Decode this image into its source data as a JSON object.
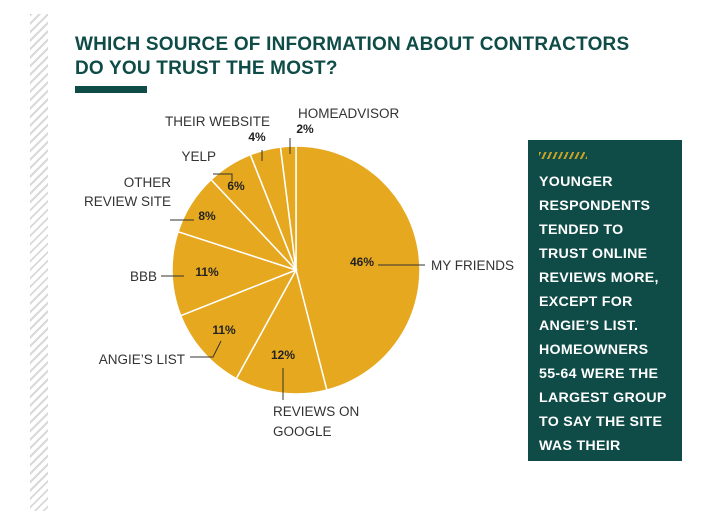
{
  "title_line1": "WHICH SOURCE OF INFORMATION ABOUT CONTRACTORS",
  "title_line2": "DO YOU TRUST THE MOST?",
  "callout": {
    "text": "YOUNGER RESPONDENTS TENDED TO TRUST ONLINE REVIEWS MORE, EXCEPT FOR ANGIE’S LIST. HOMEOWNERS 55-64 WERE THE LARGEST GROUP TO SAY THE SITE WAS THEIR “MOST TRUSTED”"
  },
  "colors": {
    "primary": "#0f4c47",
    "slice": "#e6a81e",
    "slice_edge": "#ffffff",
    "accent_stripes": "#c8a226"
  },
  "chart_data": {
    "type": "pie",
    "title": "WHICH SOURCE OF INFORMATION ABOUT CONTRACTORS DO YOU TRUST THE MOST?",
    "slices": [
      {
        "label": "MY FRIENDS",
        "value": 46,
        "display": "46%"
      },
      {
        "label": "REVIEWS ON GOOGLE",
        "value": 12,
        "display": "12%"
      },
      {
        "label": "ANGIE’S LIST",
        "value": 11,
        "display": "11%"
      },
      {
        "label": "BBB",
        "value": 11,
        "display": "11%"
      },
      {
        "label": "OTHER REVIEW SITE",
        "value": 8,
        "display": "8%"
      },
      {
        "label": "YELP",
        "value": 6,
        "display": "6%"
      },
      {
        "label": "THEIR WEBSITE",
        "value": 4,
        "display": "4%"
      },
      {
        "label": "HOMEADVISOR",
        "value": 2,
        "display": "2%"
      }
    ]
  }
}
